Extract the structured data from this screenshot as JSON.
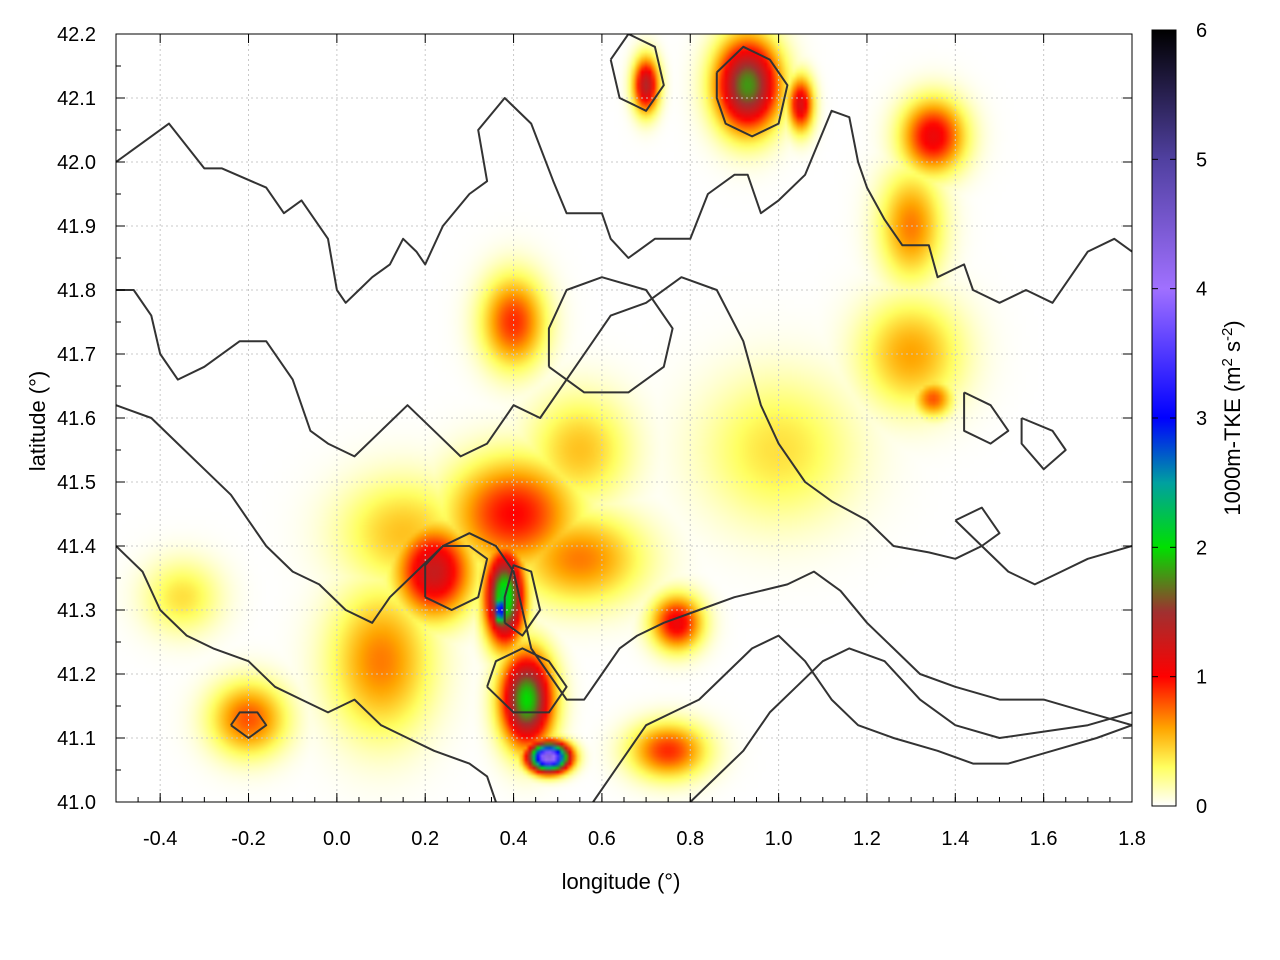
{
  "chart_data": {
    "type": "heatmap",
    "xlabel": "longitude (°)",
    "ylabel": "latitude (°)",
    "colorbar_label": "1000m-TKE (m",
    "colorbar_label_sup1": "2",
    "colorbar_label_mid": " s",
    "colorbar_label_sup2": "-2",
    "colorbar_label_end": ")",
    "xlim": [
      -0.5,
      1.8
    ],
    "ylim": [
      41.0,
      42.2
    ],
    "xticks": [
      -0.4,
      -0.2,
      0.0,
      0.2,
      0.4,
      0.6,
      0.8,
      1.0,
      1.2,
      1.4,
      1.6,
      1.8
    ],
    "xtick_labels": [
      "-0.4",
      "-0.2",
      "0.0",
      "0.2",
      "0.4",
      "0.6",
      "0.8",
      "1.0",
      "1.2",
      "1.4",
      "1.6",
      "1.8"
    ],
    "yticks": [
      41.0,
      41.1,
      41.2,
      41.3,
      41.4,
      41.5,
      41.6,
      41.7,
      41.8,
      41.9,
      42.0,
      42.1,
      42.2
    ],
    "ytick_labels": [
      "41.0",
      "41.1",
      "41.2",
      "41.3",
      "41.4",
      "41.5",
      "41.6",
      "41.7",
      "41.8",
      "41.9",
      "42.0",
      "42.1",
      "42.2"
    ],
    "colorbar": {
      "range": [
        0,
        6
      ],
      "ticks": [
        0,
        1,
        2,
        3,
        4,
        5,
        6
      ],
      "tick_labels": [
        "0",
        "1",
        "2",
        "3",
        "4",
        "5",
        "6"
      ],
      "stops": [
        {
          "v": 0.0,
          "color": "#ffffff"
        },
        {
          "v": 0.3,
          "color": "#ffff60"
        },
        {
          "v": 0.6,
          "color": "#ffa500"
        },
        {
          "v": 1.0,
          "color": "#ff0000"
        },
        {
          "v": 1.5,
          "color": "#a03030"
        },
        {
          "v": 2.0,
          "color": "#00e000"
        },
        {
          "v": 2.5,
          "color": "#00a0a0"
        },
        {
          "v": 3.0,
          "color": "#0000ff"
        },
        {
          "v": 4.0,
          "color": "#a070ff"
        },
        {
          "v": 5.0,
          "color": "#5040a0"
        },
        {
          "v": 6.0,
          "color": "#000000"
        }
      ]
    },
    "grid": true,
    "tke_maxima": [
      {
        "lon": 0.93,
        "lat": 42.12,
        "value": 1.8,
        "sx": 0.05,
        "sy": 0.05
      },
      {
        "lon": 0.7,
        "lat": 42.12,
        "value": 1.4,
        "sx": 0.02,
        "sy": 0.03
      },
      {
        "lon": 1.05,
        "lat": 42.09,
        "value": 1.2,
        "sx": 0.02,
        "sy": 0.03
      },
      {
        "lon": 1.35,
        "lat": 42.04,
        "value": 1.1,
        "sx": 0.05,
        "sy": 0.04
      },
      {
        "lon": 0.4,
        "lat": 41.75,
        "value": 0.9,
        "sx": 0.05,
        "sy": 0.05
      },
      {
        "lon": 1.3,
        "lat": 41.7,
        "value": 0.6,
        "sx": 0.08,
        "sy": 0.06
      },
      {
        "lon": 1.35,
        "lat": 41.63,
        "value": 0.8,
        "sx": 0.03,
        "sy": 0.02
      },
      {
        "lon": 1.3,
        "lat": 41.9,
        "value": 0.7,
        "sx": 0.05,
        "sy": 0.06
      },
      {
        "lon": 0.4,
        "lat": 41.45,
        "value": 1.0,
        "sx": 0.1,
        "sy": 0.06
      },
      {
        "lon": 0.22,
        "lat": 41.36,
        "value": 1.3,
        "sx": 0.06,
        "sy": 0.05
      },
      {
        "lon": 0.38,
        "lat": 41.32,
        "value": 2.2,
        "sx": 0.03,
        "sy": 0.05
      },
      {
        "lon": 0.37,
        "lat": 41.3,
        "value": 3.3,
        "sx": 0.01,
        "sy": 0.02
      },
      {
        "lon": 0.43,
        "lat": 41.16,
        "value": 2.0,
        "sx": 0.04,
        "sy": 0.05
      },
      {
        "lon": 0.48,
        "lat": 41.07,
        "value": 4.4,
        "sx": 0.03,
        "sy": 0.015
      },
      {
        "lon": 0.77,
        "lat": 41.28,
        "value": 1.1,
        "sx": 0.04,
        "sy": 0.03
      },
      {
        "lon": 0.1,
        "lat": 41.22,
        "value": 0.7,
        "sx": 0.08,
        "sy": 0.08
      },
      {
        "lon": -0.2,
        "lat": 41.13,
        "value": 0.8,
        "sx": 0.06,
        "sy": 0.04
      },
      {
        "lon": 0.55,
        "lat": 41.38,
        "value": 0.7,
        "sx": 0.1,
        "sy": 0.05
      },
      {
        "lon": 0.75,
        "lat": 41.08,
        "value": 0.9,
        "sx": 0.06,
        "sy": 0.03
      },
      {
        "lon": 0.15,
        "lat": 41.42,
        "value": 0.5,
        "sx": 0.1,
        "sy": 0.06
      },
      {
        "lon": -0.35,
        "lat": 41.32,
        "value": 0.4,
        "sx": 0.06,
        "sy": 0.04
      },
      {
        "lon": 1.0,
        "lat": 41.55,
        "value": 0.4,
        "sx": 0.12,
        "sy": 0.08
      },
      {
        "lon": 0.55,
        "lat": 41.55,
        "value": 0.5,
        "sx": 0.08,
        "sy": 0.06
      }
    ],
    "contours": [
      [
        [
          -0.5,
          42.0
        ],
        [
          -0.38,
          42.06
        ],
        [
          -0.3,
          41.99
        ],
        [
          -0.26,
          41.99
        ],
        [
          -0.16,
          41.96
        ],
        [
          -0.12,
          41.92
        ],
        [
          -0.08,
          41.94
        ],
        [
          -0.02,
          41.88
        ],
        [
          0.0,
          41.8
        ],
        [
          0.02,
          41.78
        ],
        [
          0.05,
          41.8
        ],
        [
          0.08,
          41.82
        ],
        [
          0.12,
          41.84
        ],
        [
          0.15,
          41.88
        ],
        [
          0.18,
          41.86
        ],
        [
          0.2,
          41.84
        ],
        [
          0.24,
          41.9
        ],
        [
          0.3,
          41.95
        ],
        [
          0.34,
          41.97
        ],
        [
          0.32,
          42.05
        ],
        [
          0.38,
          42.1
        ],
        [
          0.44,
          42.06
        ],
        [
          0.49,
          41.97
        ],
        [
          0.52,
          41.92
        ],
        [
          0.6,
          41.92
        ],
        [
          0.62,
          41.88
        ],
        [
          0.66,
          41.85
        ],
        [
          0.72,
          41.88
        ],
        [
          0.8,
          41.88
        ],
        [
          0.84,
          41.95
        ],
        [
          0.9,
          41.98
        ],
        [
          0.93,
          41.98
        ],
        [
          0.96,
          41.92
        ],
        [
          1.0,
          41.94
        ],
        [
          1.06,
          41.98
        ],
        [
          1.12,
          42.08
        ],
        [
          1.16,
          42.07
        ],
        [
          1.18,
          42.0
        ],
        [
          1.2,
          41.96
        ],
        [
          1.24,
          41.91
        ],
        [
          1.28,
          41.87
        ],
        [
          1.34,
          41.87
        ],
        [
          1.36,
          41.82
        ],
        [
          1.42,
          41.84
        ],
        [
          1.44,
          41.8
        ],
        [
          1.5,
          41.78
        ],
        [
          1.56,
          41.8
        ],
        [
          1.62,
          41.78
        ],
        [
          1.66,
          41.82
        ],
        [
          1.7,
          41.86
        ],
        [
          1.76,
          41.88
        ],
        [
          1.8,
          41.86
        ]
      ],
      [
        [
          -0.5,
          41.8
        ],
        [
          -0.46,
          41.8
        ],
        [
          -0.42,
          41.76
        ],
        [
          -0.4,
          41.7
        ],
        [
          -0.36,
          41.66
        ],
        [
          -0.3,
          41.68
        ],
        [
          -0.22,
          41.72
        ],
        [
          -0.16,
          41.72
        ],
        [
          -0.1,
          41.66
        ],
        [
          -0.06,
          41.58
        ],
        [
          -0.02,
          41.56
        ],
        [
          0.04,
          41.54
        ],
        [
          0.1,
          41.58
        ],
        [
          0.16,
          41.62
        ],
        [
          0.22,
          41.58
        ],
        [
          0.28,
          41.54
        ],
        [
          0.34,
          41.56
        ],
        [
          0.4,
          41.62
        ],
        [
          0.46,
          41.6
        ],
        [
          0.52,
          41.66
        ],
        [
          0.58,
          41.72
        ],
        [
          0.62,
          41.76
        ],
        [
          0.7,
          41.78
        ],
        [
          0.78,
          41.82
        ],
        [
          0.86,
          41.8
        ],
        [
          0.92,
          41.72
        ],
        [
          0.96,
          41.62
        ],
        [
          1.0,
          41.56
        ],
        [
          1.06,
          41.5
        ],
        [
          1.12,
          41.47
        ],
        [
          1.2,
          41.44
        ],
        [
          1.26,
          41.4
        ],
        [
          1.34,
          41.39
        ],
        [
          1.4,
          41.38
        ],
        [
          1.46,
          41.4
        ],
        [
          1.52,
          41.36
        ],
        [
          1.58,
          41.34
        ],
        [
          1.64,
          41.36
        ],
        [
          1.7,
          41.38
        ],
        [
          1.8,
          41.4
        ]
      ],
      [
        [
          -0.5,
          41.62
        ],
        [
          -0.42,
          41.6
        ],
        [
          -0.36,
          41.56
        ],
        [
          -0.3,
          41.52
        ],
        [
          -0.24,
          41.48
        ],
        [
          -0.2,
          41.44
        ],
        [
          -0.16,
          41.4
        ],
        [
          -0.1,
          41.36
        ],
        [
          -0.04,
          41.34
        ],
        [
          0.02,
          41.3
        ],
        [
          0.08,
          41.28
        ],
        [
          0.12,
          41.32
        ],
        [
          0.18,
          41.36
        ],
        [
          0.24,
          41.4
        ],
        [
          0.3,
          41.42
        ],
        [
          0.36,
          41.4
        ],
        [
          0.4,
          41.36
        ],
        [
          0.42,
          41.3
        ],
        [
          0.44,
          41.24
        ],
        [
          0.48,
          41.2
        ],
        [
          0.52,
          41.16
        ],
        [
          0.56,
          41.16
        ],
        [
          0.6,
          41.2
        ],
        [
          0.64,
          41.24
        ],
        [
          0.68,
          41.26
        ],
        [
          0.74,
          41.28
        ],
        [
          0.82,
          41.3
        ],
        [
          0.9,
          41.32
        ],
        [
          0.96,
          41.33
        ],
        [
          1.02,
          41.34
        ],
        [
          1.08,
          41.36
        ],
        [
          1.14,
          41.33
        ],
        [
          1.2,
          41.28
        ],
        [
          1.26,
          41.24
        ],
        [
          1.32,
          41.2
        ],
        [
          1.4,
          41.18
        ],
        [
          1.5,
          41.16
        ],
        [
          1.6,
          41.16
        ],
        [
          1.7,
          41.14
        ],
        [
          1.8,
          41.12
        ]
      ],
      [
        [
          -0.5,
          41.4
        ],
        [
          -0.44,
          41.36
        ],
        [
          -0.4,
          41.3
        ],
        [
          -0.34,
          41.26
        ],
        [
          -0.28,
          41.24
        ],
        [
          -0.2,
          41.22
        ],
        [
          -0.14,
          41.18
        ],
        [
          -0.08,
          41.16
        ],
        [
          -0.02,
          41.14
        ],
        [
          0.04,
          41.16
        ],
        [
          0.1,
          41.12
        ],
        [
          0.16,
          41.1
        ],
        [
          0.22,
          41.08
        ],
        [
          0.3,
          41.06
        ],
        [
          0.34,
          41.04
        ],
        [
          0.36,
          41.0
        ]
      ],
      [
        [
          0.58,
          41.0
        ],
        [
          0.62,
          41.04
        ],
        [
          0.66,
          41.08
        ],
        [
          0.7,
          41.12
        ],
        [
          0.76,
          41.14
        ],
        [
          0.82,
          41.16
        ],
        [
          0.88,
          41.2
        ],
        [
          0.94,
          41.24
        ],
        [
          1.0,
          41.26
        ],
        [
          1.06,
          41.22
        ],
        [
          1.12,
          41.16
        ],
        [
          1.18,
          41.12
        ],
        [
          1.26,
          41.1
        ],
        [
          1.36,
          41.08
        ],
        [
          1.44,
          41.06
        ],
        [
          1.52,
          41.06
        ],
        [
          1.62,
          41.08
        ],
        [
          1.72,
          41.1
        ],
        [
          1.8,
          41.12
        ]
      ],
      [
        [
          0.8,
          41.0
        ],
        [
          0.86,
          41.04
        ],
        [
          0.92,
          41.08
        ],
        [
          0.98,
          41.14
        ],
        [
          1.04,
          41.18
        ],
        [
          1.1,
          41.22
        ],
        [
          1.16,
          41.24
        ],
        [
          1.24,
          41.22
        ],
        [
          1.32,
          41.16
        ],
        [
          1.4,
          41.12
        ],
        [
          1.5,
          41.1
        ],
        [
          1.6,
          41.11
        ],
        [
          1.7,
          41.12
        ],
        [
          1.8,
          41.14
        ]
      ],
      [
        [
          0.2,
          41.32
        ],
        [
          0.26,
          41.3
        ],
        [
          0.32,
          41.32
        ],
        [
          0.34,
          41.38
        ],
        [
          0.3,
          41.4
        ],
        [
          0.24,
          41.4
        ],
        [
          0.2,
          41.37
        ],
        [
          0.2,
          41.32
        ]
      ],
      [
        [
          0.38,
          41.28
        ],
        [
          0.42,
          41.26
        ],
        [
          0.46,
          41.3
        ],
        [
          0.44,
          41.36
        ],
        [
          0.4,
          41.37
        ],
        [
          0.38,
          41.32
        ],
        [
          0.38,
          41.28
        ]
      ],
      [
        [
          0.34,
          41.18
        ],
        [
          0.4,
          41.14
        ],
        [
          0.48,
          41.14
        ],
        [
          0.52,
          41.18
        ],
        [
          0.48,
          41.22
        ],
        [
          0.42,
          41.24
        ],
        [
          0.36,
          41.22
        ],
        [
          0.34,
          41.18
        ]
      ],
      [
        [
          0.86,
          42.14
        ],
        [
          0.92,
          42.18
        ],
        [
          0.98,
          42.16
        ],
        [
          1.02,
          42.12
        ],
        [
          1.0,
          42.06
        ],
        [
          0.94,
          42.04
        ],
        [
          0.88,
          42.06
        ],
        [
          0.86,
          42.1
        ],
        [
          0.86,
          42.14
        ]
      ],
      [
        [
          0.62,
          42.16
        ],
        [
          0.66,
          42.2
        ],
        [
          0.72,
          42.18
        ],
        [
          0.74,
          42.12
        ],
        [
          0.7,
          42.08
        ],
        [
          0.64,
          42.1
        ],
        [
          0.62,
          42.16
        ]
      ],
      [
        [
          0.48,
          41.68
        ],
        [
          0.56,
          41.64
        ],
        [
          0.66,
          41.64
        ],
        [
          0.74,
          41.68
        ],
        [
          0.76,
          41.74
        ],
        [
          0.7,
          41.8
        ],
        [
          0.6,
          41.82
        ],
        [
          0.52,
          41.8
        ],
        [
          0.48,
          41.74
        ],
        [
          0.48,
          41.68
        ]
      ],
      [
        [
          1.42,
          41.64
        ],
        [
          1.48,
          41.62
        ],
        [
          1.52,
          41.58
        ],
        [
          1.48,
          41.56
        ],
        [
          1.42,
          41.58
        ],
        [
          1.42,
          41.64
        ]
      ],
      [
        [
          1.4,
          41.44
        ],
        [
          1.46,
          41.46
        ],
        [
          1.5,
          41.42
        ],
        [
          1.46,
          41.4
        ],
        [
          1.4,
          41.44
        ]
      ],
      [
        [
          1.55,
          41.6
        ],
        [
          1.62,
          41.58
        ],
        [
          1.65,
          41.55
        ],
        [
          1.6,
          41.52
        ],
        [
          1.55,
          41.56
        ],
        [
          1.55,
          41.6
        ]
      ],
      [
        [
          -0.24,
          41.12
        ],
        [
          -0.2,
          41.1
        ],
        [
          -0.16,
          41.12
        ],
        [
          -0.18,
          41.14
        ],
        [
          -0.22,
          41.14
        ],
        [
          -0.24,
          41.12
        ]
      ]
    ]
  }
}
